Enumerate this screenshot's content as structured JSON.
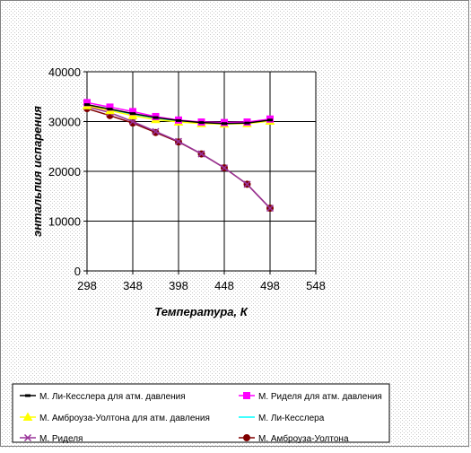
{
  "chart_data": {
    "type": "line",
    "title": "",
    "xlabel": "Температура, К",
    "ylabel": "энтальпия испарения",
    "xlim": [
      298,
      548
    ],
    "ylim": [
      0,
      40000
    ],
    "x_ticks": [
      298,
      348,
      398,
      448,
      498,
      548
    ],
    "y_ticks": [
      0,
      10000,
      20000,
      30000,
      40000
    ],
    "grid": {
      "horizontal": true,
      "vertical": true
    },
    "legend_position": "bottom",
    "series": [
      {
        "name": "М. Ли-Кесслера для атм. давления",
        "color": "#000000",
        "marker": "dash",
        "x": [
          298,
          323,
          348,
          373,
          398,
          423,
          448,
          473,
          498
        ],
        "y": [
          33400,
          32500,
          31600,
          30800,
          30200,
          29800,
          29600,
          29700,
          30300
        ]
      },
      {
        "name": "М. Риделя для атм. давления",
        "color": "#ff00ff",
        "marker": "square",
        "x": [
          298,
          323,
          348,
          373,
          398,
          423,
          448,
          473,
          498
        ],
        "y": [
          33800,
          32900,
          32000,
          31000,
          30300,
          29900,
          29800,
          29900,
          30500
        ]
      },
      {
        "name": "М. Амброуза-Уолтона для атм. давления",
        "color": "#ffff00",
        "marker": "triangle",
        "x": [
          298,
          323,
          348,
          373,
          398,
          423,
          448,
          473,
          498
        ],
        "y": [
          33200,
          32200,
          31200,
          30400,
          29900,
          29600,
          29500,
          29600,
          30100
        ]
      },
      {
        "name": "М. Ли-Кесслера",
        "color": "#00ffff",
        "marker": "none",
        "x": [
          298,
          323,
          348,
          373,
          398,
          423,
          448,
          473,
          498
        ],
        "y": [
          33300,
          32300,
          31300,
          30500,
          30000,
          29700,
          29500,
          29700,
          30200
        ]
      },
      {
        "name": "М. Риделя",
        "color": "#993399",
        "marker": "x",
        "x": [
          298,
          323,
          348,
          373,
          398,
          423,
          448,
          473,
          498
        ],
        "y": [
          33000,
          31800,
          30000,
          28000,
          26000,
          23500,
          20700,
          17400,
          12600
        ]
      },
      {
        "name": "М. Амброуза-Уолтона",
        "color": "#800000",
        "marker": "circle",
        "x": [
          298,
          323,
          348,
          373,
          398,
          423,
          448,
          473,
          498
        ],
        "y": [
          32600,
          31200,
          29700,
          27800,
          25900,
          23500,
          20700,
          17400,
          12600
        ]
      }
    ]
  }
}
